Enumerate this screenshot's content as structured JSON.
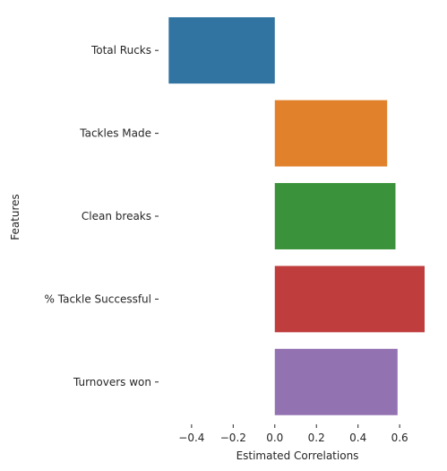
{
  "chart_data": {
    "type": "bar",
    "orientation": "horizontal",
    "xlabel": "Estimated Correlations",
    "ylabel": "Features",
    "xlim": [
      -0.52,
      0.72
    ],
    "xticks": [
      -0.4,
      -0.2,
      0.0,
      0.2,
      0.4,
      0.6
    ],
    "xtick_labels": [
      "−0.4",
      "−0.2",
      "0.0",
      "0.2",
      "0.4",
      "0.6"
    ],
    "grid": false,
    "categories": [
      "Total Rucks",
      "Tackles Made",
      "Clean breaks",
      "% Tackle Successful",
      "Turnovers won"
    ],
    "values": [
      -0.51,
      0.54,
      0.58,
      0.72,
      0.59
    ],
    "colors": [
      "#3274a1",
      "#e1812c",
      "#3a923a",
      "#c03d3e",
      "#9372b2"
    ]
  }
}
